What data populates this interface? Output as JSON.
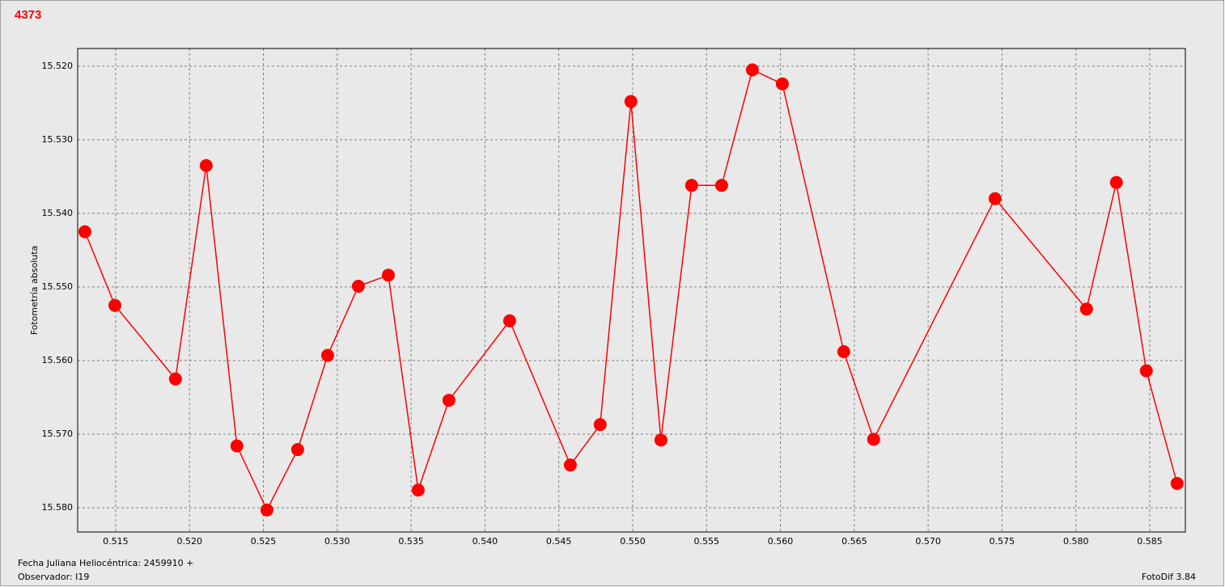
{
  "chart_data": {
    "type": "line",
    "title": "4373",
    "ylabel": "Fotometría absoluta",
    "xlabel": "Fecha Juliana Heliocéntrica: 2459910 +",
    "observer": "Observador: I19",
    "software": "FotoDif 3.84",
    "color": "#ff0000",
    "grid": true,
    "y_inverted": true,
    "x": [
      0.51292,
      0.51495,
      0.51905,
      0.52113,
      0.52321,
      0.52524,
      0.52732,
      0.52935,
      0.53143,
      0.53346,
      0.53548,
      0.53756,
      0.54167,
      0.54578,
      0.5478,
      0.54988,
      0.55191,
      0.55399,
      0.55602,
      0.5581,
      0.56013,
      0.56429,
      0.56631,
      0.57453,
      0.58072,
      0.58274,
      0.58477,
      0.58685
    ],
    "values": [
      15.5425,
      15.5525,
      15.5625,
      15.5335,
      15.5716,
      15.5803,
      15.5721,
      15.5593,
      15.5499,
      15.5484,
      15.5776,
      15.5654,
      15.5546,
      15.5742,
      15.5687,
      15.5248,
      15.5708,
      15.5362,
      15.5362,
      15.5205,
      15.5224,
      15.5588,
      15.5707,
      15.538,
      15.553,
      15.5358,
      15.5614,
      15.5767
    ],
    "xlim": [
      0.51243,
      0.58741
    ],
    "xticks": [
      0.515,
      {
        "value": 0.52,
        "label": "0.520"
      },
      0.525,
      {
        "value": 0.53,
        "label": "0.530"
      },
      0.535,
      {
        "value": 0.54,
        "label": "0.540"
      },
      0.545,
      {
        "value": 0.55,
        "label": "0.550"
      },
      0.555,
      {
        "value": 0.56,
        "label": "0.560"
      },
      0.565,
      {
        "value": 0.57,
        "label": "0.570"
      },
      0.575,
      {
        "value": 0.58,
        "label": "0.580"
      },
      0.585
    ],
    "ylim": [
      15.5176,
      15.5833
    ],
    "yticks": [
      {
        "value": 15.52,
        "label": "15.520"
      },
      {
        "value": 15.53,
        "label": "15.530"
      },
      {
        "value": 15.54,
        "label": "15.540"
      },
      {
        "value": 15.55,
        "label": "15.550"
      },
      {
        "value": 15.56,
        "label": "15.560"
      },
      {
        "value": 15.57,
        "label": "15.570"
      },
      {
        "value": 15.58,
        "label": "15.580"
      }
    ]
  }
}
